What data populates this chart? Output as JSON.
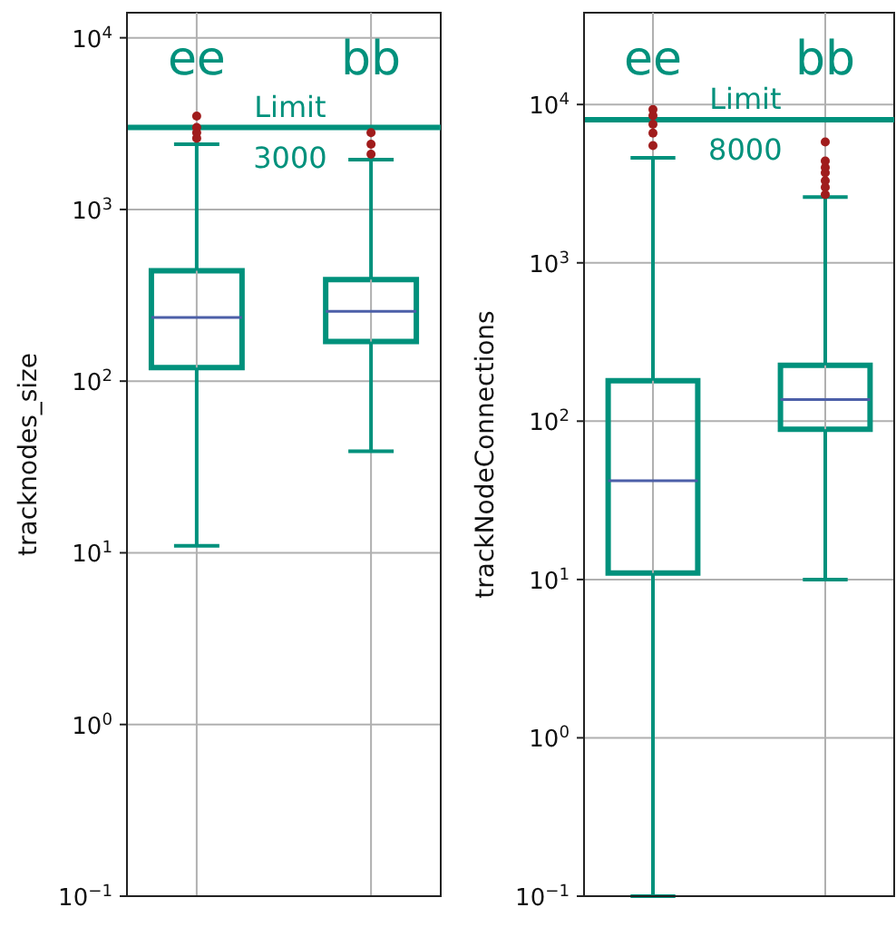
{
  "chart_data": [
    {
      "type": "box",
      "ylabel": "tracknodes_size",
      "categories": [
        "ee",
        "bb"
      ],
      "log": true,
      "grid": true,
      "tick_labels": "y",
      "ylim": [
        0.1,
        14000
      ],
      "yticks": [
        {
          "value": 0.1,
          "label": "10$^{−1}$"
        },
        {
          "value": 1,
          "label": "10$^{0}$"
        },
        {
          "value": 10,
          "label": "10$^{1}$"
        },
        {
          "value": 100,
          "label": "10$^{2}$"
        },
        {
          "value": 1000,
          "label": "10$^{3}$"
        },
        {
          "value": 10000,
          "label": "10$^{4}$"
        }
      ],
      "series": [
        {
          "color": "#00917c",
          "boxes": [
            {
              "low": 11,
              "q1": 120,
              "median": 235,
              "q3": 440,
              "high": 2400,
              "outliers": [
                2600,
                2800,
                3000,
                3500
              ]
            },
            {
              "low": 39,
              "q1": 170,
              "median": 255,
              "q3": 390,
              "high": 1950,
              "outliers": [
                2100,
                2400,
                2800
              ]
            }
          ]
        }
      ],
      "ref_lines": [
        {
          "axis": "y",
          "value": 3000,
          "label": "Limit 3000",
          "color": "#00917c"
        }
      ]
    },
    {
      "type": "box",
      "ylabel": "trackNodeConnections",
      "categories": [
        "ee",
        "bb"
      ],
      "log": true,
      "grid": true,
      "tick_labels": "y",
      "ylim": [
        0.1,
        38000
      ],
      "yticks": [
        {
          "value": 0.1,
          "label": "10$^{−1}$"
        },
        {
          "value": 1,
          "label": "10$^{0}$"
        },
        {
          "value": 10,
          "label": "10$^{1}$"
        },
        {
          "value": 100,
          "label": "10$^{2}$"
        },
        {
          "value": 1000,
          "label": "10$^{3}$"
        },
        {
          "value": 10000,
          "label": "10$^{4}$"
        }
      ],
      "series": [
        {
          "color": "#00917c",
          "boxes": [
            {
              "low": 0.1,
              "q1": 11,
              "median": 42,
              "q3": 180,
              "high": 4600,
              "outliers": [
                5500,
                6600,
                7500,
                8500,
                9300
              ]
            },
            {
              "low": 10,
              "q1": 89,
              "median": 137,
              "q3": 225,
              "high": 2600,
              "outliers": [
                2700,
                3000,
                3300,
                3700,
                4000,
                4400,
                5800
              ]
            }
          ]
        }
      ],
      "ref_lines": [
        {
          "axis": "y",
          "value": 8000,
          "label": "Limit 8000",
          "color": "#00917c"
        }
      ]
    }
  ]
}
